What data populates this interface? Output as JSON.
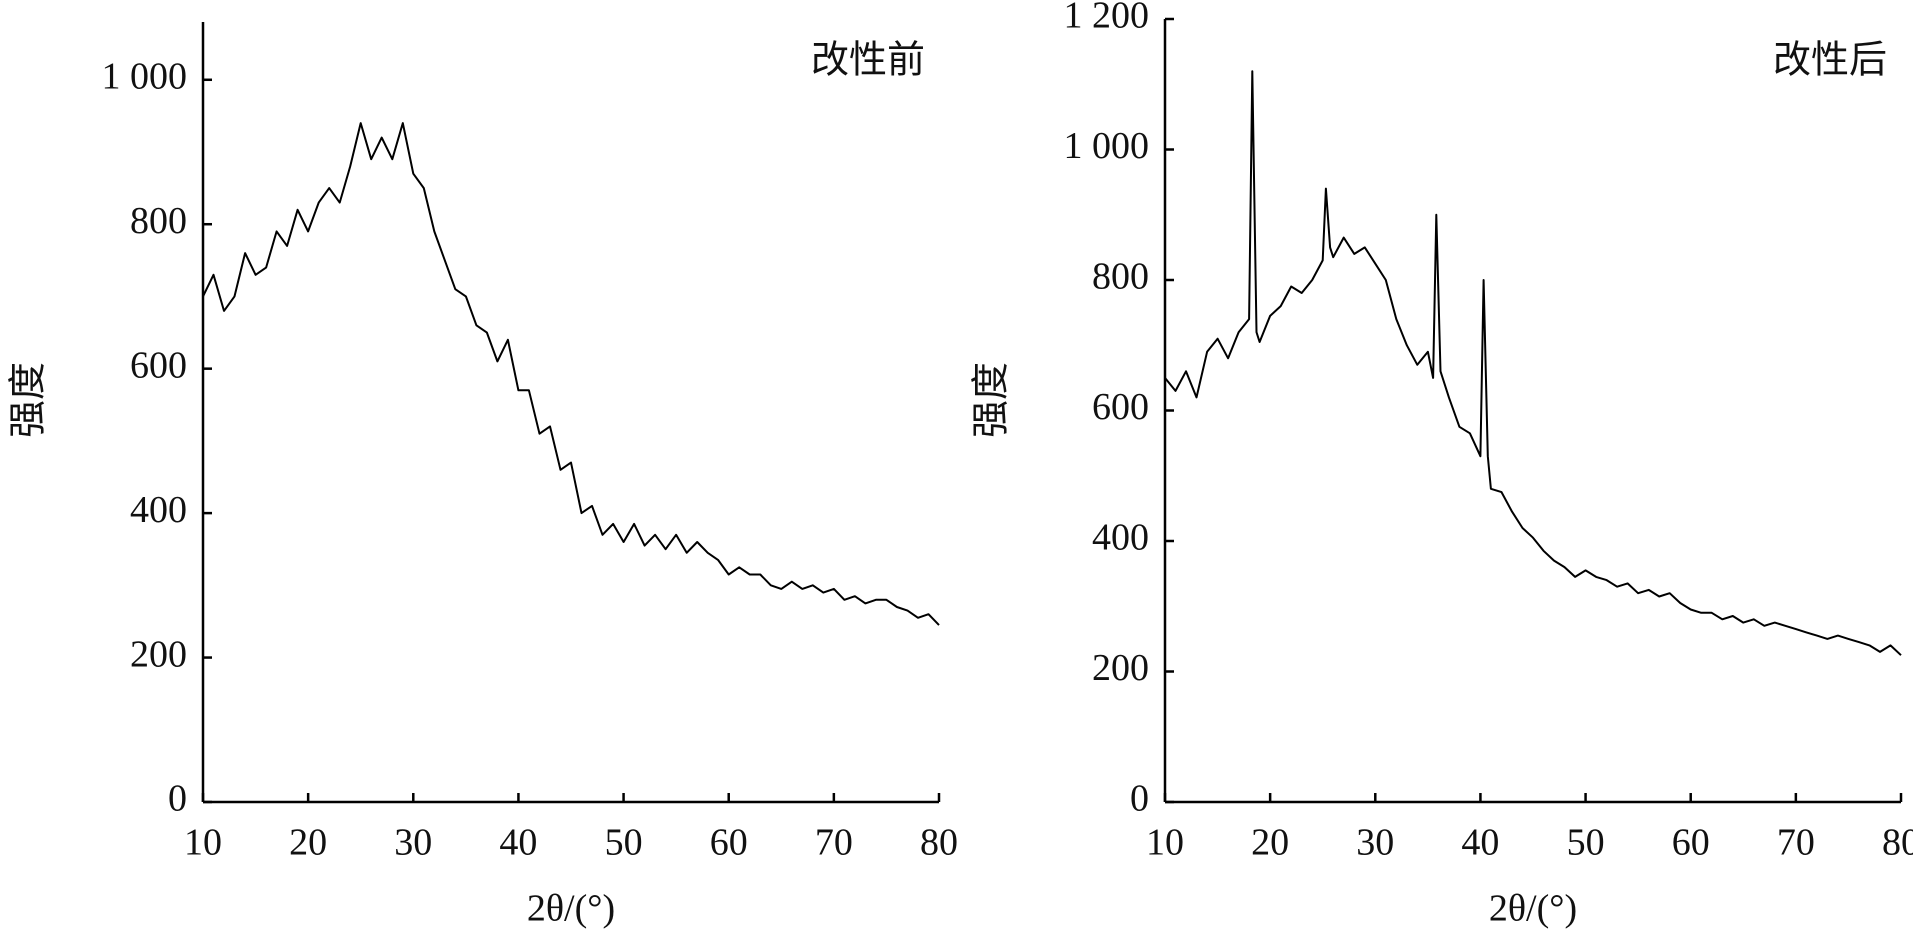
{
  "chart_data": [
    {
      "type": "line",
      "annotation": "改性前",
      "x_label": "2θ/(°)",
      "y_label": "强度",
      "color": "#000000",
      "xlim": [
        10,
        80
      ],
      "xticks": [
        10,
        20,
        30,
        40,
        50,
        60,
        70,
        80
      ],
      "ylim": [
        0,
        1080
      ],
      "yticks": [
        0,
        200,
        400,
        600,
        800,
        {
          "value": 1000,
          "label": "1 000"
        }
      ],
      "x": [
        10,
        11,
        12,
        13,
        14,
        15,
        16,
        17,
        18,
        19,
        20,
        21,
        22,
        23,
        24,
        25,
        26,
        27,
        28,
        29,
        30,
        31,
        32,
        33,
        34,
        35,
        36,
        37,
        38,
        39,
        40,
        41,
        42,
        43,
        44,
        45,
        46,
        47,
        48,
        49,
        50,
        51,
        52,
        53,
        54,
        55,
        56,
        57,
        58,
        59,
        60,
        61,
        62,
        63,
        64,
        65,
        66,
        67,
        68,
        69,
        70,
        71,
        72,
        73,
        74,
        75,
        76,
        77,
        78,
        79,
        80
      ],
      "values": [
        700,
        730,
        680,
        700,
        760,
        730,
        740,
        790,
        770,
        820,
        790,
        830,
        850,
        830,
        880,
        940,
        890,
        920,
        890,
        940,
        870,
        850,
        790,
        750,
        710,
        700,
        660,
        650,
        610,
        640,
        570,
        570,
        510,
        520,
        460,
        470,
        400,
        410,
        370,
        385,
        360,
        385,
        355,
        370,
        350,
        370,
        345,
        360,
        345,
        335,
        315,
        325,
        315,
        315,
        300,
        295,
        305,
        295,
        300,
        290,
        295,
        280,
        285,
        275,
        280,
        280,
        270,
        265,
        255,
        260,
        245
      ]
    },
    {
      "type": "line",
      "annotation": "改性后",
      "x_label": "2θ/(°)",
      "y_label": "强度",
      "color": "#000000",
      "xlim": [
        10,
        80
      ],
      "xticks": [
        10,
        20,
        30,
        40,
        50,
        60,
        70,
        80
      ],
      "ylim": [
        0,
        1200
      ],
      "yticks": [
        0,
        200,
        400,
        600,
        800,
        {
          "value": 1000,
          "label": "1 000"
        },
        {
          "value": 1200,
          "label": "1 200"
        }
      ],
      "x": [
        10,
        11,
        12,
        13,
        14,
        15,
        16,
        17,
        18,
        18.3,
        18.7,
        19,
        20,
        21,
        22,
        23,
        24,
        25,
        25.3,
        25.7,
        26,
        27,
        28,
        29,
        30,
        31,
        32,
        33,
        34,
        35,
        35.5,
        35.8,
        36.2,
        37,
        38,
        39,
        40,
        40.3,
        40.7,
        41,
        42,
        43,
        44,
        45,
        46,
        47,
        48,
        49,
        50,
        51,
        52,
        53,
        54,
        55,
        56,
        57,
        58,
        59,
        60,
        61,
        62,
        63,
        64,
        65,
        66,
        67,
        68,
        69,
        70,
        71,
        72,
        73,
        74,
        75,
        76,
        77,
        78,
        79,
        80
      ],
      "values": [
        650,
        630,
        660,
        620,
        690,
        710,
        680,
        720,
        740,
        1120,
        720,
        705,
        745,
        760,
        790,
        780,
        800,
        830,
        940,
        850,
        835,
        865,
        840,
        850,
        825,
        800,
        740,
        700,
        670,
        690,
        650,
        900,
        660,
        620,
        575,
        565,
        530,
        800,
        530,
        480,
        475,
        445,
        420,
        405,
        385,
        370,
        360,
        345,
        355,
        345,
        340,
        330,
        335,
        320,
        325,
        315,
        320,
        305,
        295,
        290,
        290,
        280,
        285,
        275,
        280,
        270,
        275,
        270,
        265,
        260,
        255,
        250,
        255,
        250,
        245,
        240,
        230,
        240,
        225
      ]
    }
  ]
}
